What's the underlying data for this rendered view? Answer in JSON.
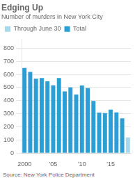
{
  "chart_data": {
    "type": "bar",
    "title": "Edging Up",
    "subtitle": "Number of murders in New York City",
    "annotations": [
      "Source: New York Police Department"
    ],
    "categories": [
      "2000",
      null,
      null,
      null,
      null,
      "'05",
      null,
      null,
      null,
      null,
      "'10",
      null,
      null,
      null,
      null,
      "'15",
      null,
      null,
      null
    ],
    "series": [
      {
        "name": "Through June 30",
        "color": "#A8D8EA",
        "values": [
          0,
          0,
          0,
          0,
          0,
          0,
          0,
          0,
          0,
          0,
          0,
          0,
          0,
          0,
          0,
          0,
          0,
          0,
          119
        ]
      },
      {
        "name": "Total",
        "color": "#2B9FD4",
        "values": [
          649,
          619,
          567,
          573,
          547,
          517,
          572,
          471,
          501,
          447,
          515,
          496,
          397,
          309,
          305,
          331,
          310,
          265,
          0
        ]
      }
    ],
    "ylim": [
      0,
      870
    ],
    "yticks": [
      0,
      100,
      200,
      300,
      400,
      500,
      600,
      700,
      800
    ],
    "grid": true,
    "legend": "top-left"
  }
}
